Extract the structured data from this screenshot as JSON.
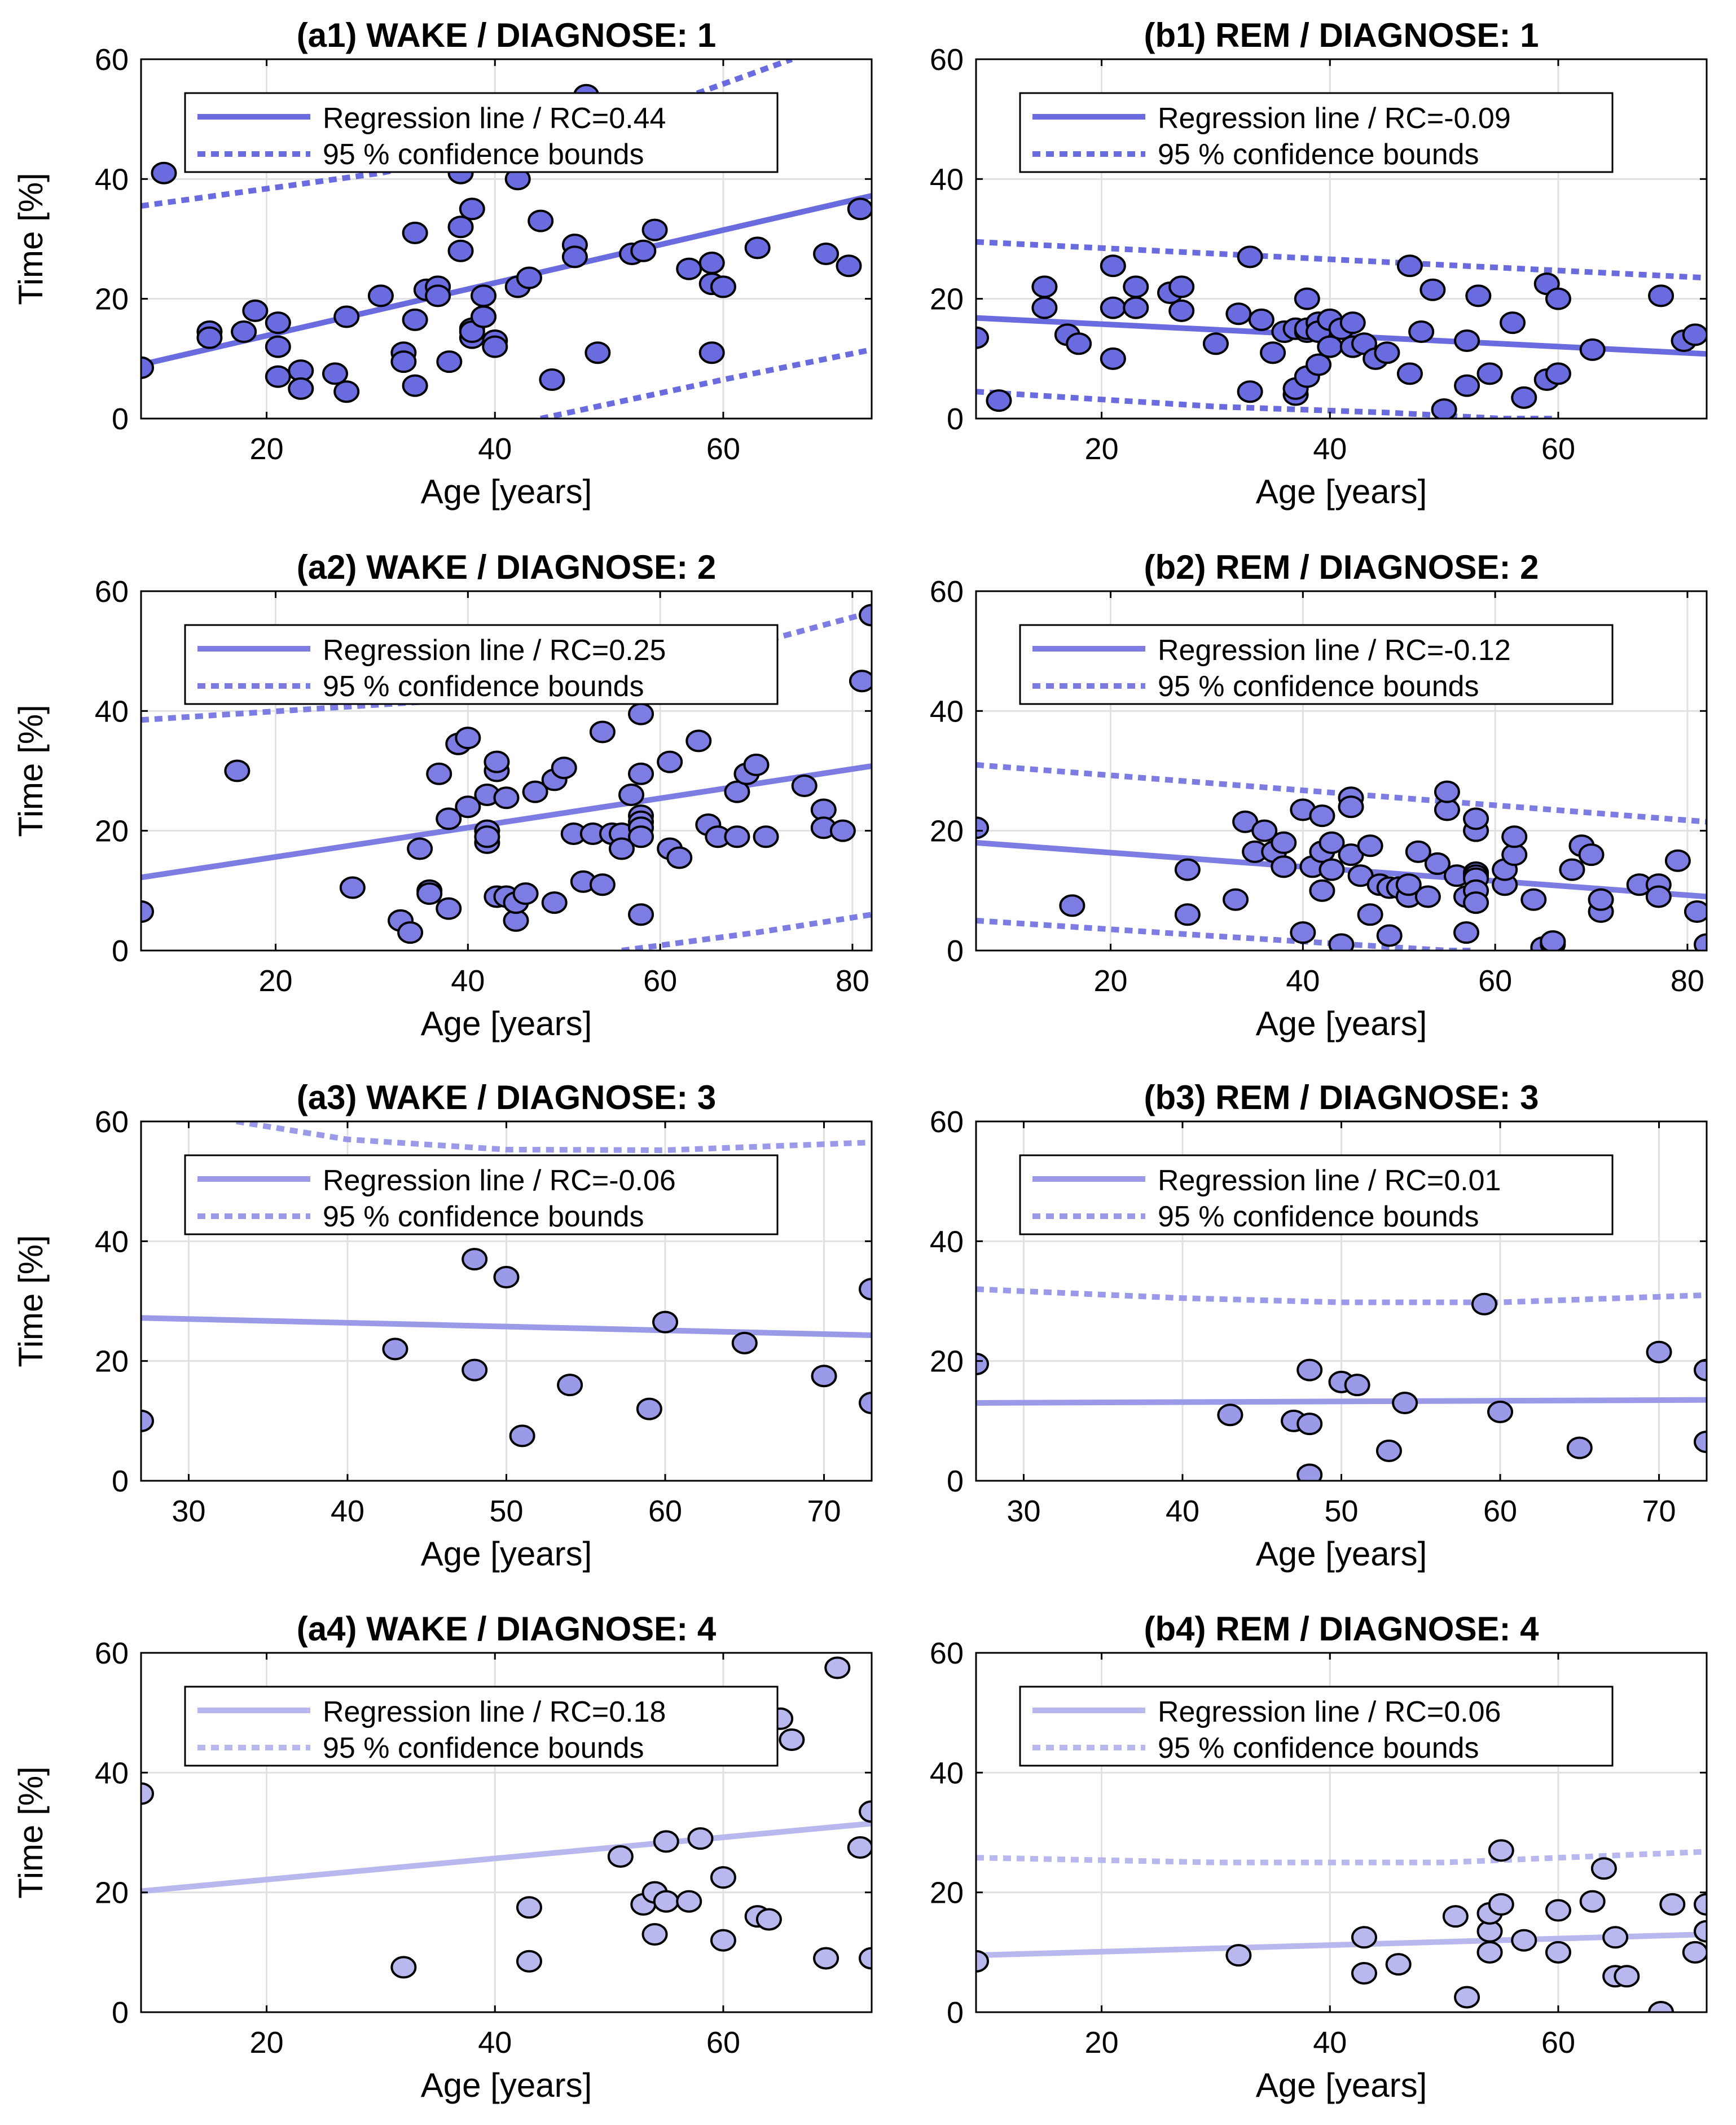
{
  "colors": {
    "diag1": "#6b6be0",
    "diag2": "#7c7ce3",
    "diag3": "#9a9ae8",
    "diag4": "#b8b8ee",
    "marker_edge": "#000000",
    "grid": "#e1e1e1",
    "axis": "#000000"
  },
  "chart_data": [
    {
      "type": "scatter",
      "title": "(a1) WAKE / DIAGNOSE: 1",
      "xlabel": "Age [years]",
      "ylabel": "Time [%]",
      "xlim": [
        9,
        73
      ],
      "ylim": [
        0,
        60
      ],
      "xticks": [
        20,
        40,
        60
      ],
      "yticks": [
        0,
        20,
        40,
        60
      ],
      "grid": true,
      "legend": {
        "placement": "top-center",
        "entries": [
          "Regression line / RC=0.44",
          "95 % confidence bounds"
        ]
      },
      "color_key": "diag1",
      "regression": {
        "x": [
          9,
          73
        ],
        "y": [
          9,
          37.2
        ]
      },
      "conf_upper": {
        "x": [
          9,
          30,
          50,
          66
        ],
        "y": [
          35.5,
          41,
          49,
          60
        ]
      },
      "conf_lower": {
        "x": [
          44,
          60,
          73
        ],
        "y": [
          0,
          6.5,
          11.5
        ]
      },
      "x": [
        9,
        11,
        15,
        15,
        18,
        19,
        21,
        21,
        21,
        23,
        23,
        26,
        27,
        27,
        30,
        32,
        32,
        33,
        33,
        33,
        34,
        35,
        35,
        36,
        37,
        37,
        37,
        38,
        38,
        38,
        38,
        39,
        39,
        39,
        40,
        40,
        42,
        42,
        43,
        44,
        45,
        47,
        47,
        48,
        49,
        52,
        53,
        54,
        57,
        59,
        59,
        59,
        60,
        63,
        69,
        71,
        72
      ],
      "y": [
        8.5,
        41,
        14.5,
        13.5,
        14.5,
        18,
        16,
        12,
        7,
        8,
        5,
        7.5,
        17,
        4.5,
        20.5,
        11,
        9.5,
        31,
        16.5,
        5.5,
        21.5,
        22,
        20.5,
        9.5,
        41,
        28,
        32,
        35,
        15,
        13.5,
        14.5,
        20.5,
        17,
        17,
        13,
        12,
        40,
        22,
        23.5,
        33,
        6.5,
        29,
        27,
        54,
        11,
        27.5,
        28,
        31.5,
        25,
        26,
        22.5,
        11,
        22,
        28.5,
        27.5,
        25.5,
        35
      ]
    },
    {
      "type": "scatter",
      "title": "(b1) REM  / DIAGNOSE: 1",
      "xlabel": "Age [years]",
      "ylabel": "",
      "xlim": [
        9,
        73
      ],
      "ylim": [
        0,
        60
      ],
      "xticks": [
        20,
        40,
        60
      ],
      "yticks": [
        0,
        20,
        40,
        60
      ],
      "grid": true,
      "legend": {
        "placement": "top-center",
        "entries": [
          "Regression line / RC=-0.09",
          "95 % confidence bounds"
        ]
      },
      "color_key": "diag1",
      "regression": {
        "x": [
          9,
          73
        ],
        "y": [
          16.8,
          10.8
        ]
      },
      "conf_upper": {
        "x": [
          9,
          73
        ],
        "y": [
          29.5,
          23.5
        ]
      },
      "conf_lower": {
        "x": [
          9,
          30,
          45,
          55,
          60
        ],
        "y": [
          4.5,
          2,
          1,
          0,
          0
        ]
      },
      "x": [
        9,
        11,
        15,
        15,
        17,
        18,
        21,
        21,
        21,
        23,
        23,
        26,
        27,
        27,
        30,
        32,
        33,
        33,
        34,
        35,
        36,
        37,
        37,
        37,
        38,
        38,
        38,
        38,
        39,
        39,
        39,
        40,
        40,
        41,
        42,
        42,
        43,
        44,
        45,
        47,
        47,
        48,
        49,
        50,
        52,
        52,
        53,
        54,
        56,
        57,
        59,
        59,
        60,
        60,
        63,
        69,
        71,
        72
      ],
      "y": [
        13.5,
        3,
        22,
        18.5,
        14,
        12.5,
        25.5,
        18.5,
        10,
        22,
        18.5,
        21,
        18,
        22,
        12.5,
        17.5,
        27,
        4.5,
        16.5,
        11,
        14.5,
        15,
        4,
        5,
        14.5,
        20,
        7,
        15,
        16,
        9,
        14.5,
        12,
        16.5,
        15,
        12,
        16,
        12.5,
        10,
        11,
        25.5,
        7.5,
        14.5,
        21.5,
        1.5,
        13,
        5.5,
        20.5,
        7.5,
        16,
        3.5,
        22.5,
        6.5,
        7.5,
        20,
        11.5,
        20.5,
        13,
        14
      ]
    },
    {
      "type": "scatter",
      "title": "(a2) WAKE / DIAGNOSE: 2",
      "xlabel": "Age [years]",
      "ylabel": "Time [%]",
      "xlim": [
        6,
        82
      ],
      "ylim": [
        0,
        60
      ],
      "xticks": [
        20,
        40,
        60,
        80
      ],
      "yticks": [
        0,
        20,
        40,
        60
      ],
      "grid": true,
      "legend": {
        "placement": "top-center",
        "entries": [
          "Regression line / RC=0.25",
          "95 % confidence bounds"
        ]
      },
      "color_key": "diag2",
      "regression": {
        "x": [
          6,
          82
        ],
        "y": [
          12.2,
          30.8
        ]
      },
      "conf_upper": {
        "x": [
          6,
          40,
          60,
          82
        ],
        "y": [
          38.5,
          42,
          47,
          56.5
        ]
      },
      "conf_lower": {
        "x": [
          56,
          70,
          82
        ],
        "y": [
          0,
          3,
          6
        ]
      },
      "x": [
        6,
        16,
        28,
        33,
        34,
        35,
        36,
        36,
        37,
        38,
        38,
        39,
        40,
        40,
        42,
        42,
        42,
        42,
        43,
        43,
        43,
        44,
        44,
        45,
        45,
        46,
        47,
        49,
        49,
        50,
        51,
        52,
        53,
        54,
        54,
        55,
        56,
        56,
        57,
        58,
        58,
        58,
        58,
        58,
        58,
        58,
        61,
        61,
        62,
        64,
        65,
        66,
        68,
        68,
        69,
        70,
        71,
        75,
        77,
        77,
        79,
        81,
        82
      ],
      "y": [
        6.5,
        30,
        10.5,
        5,
        3,
        17,
        10,
        9.5,
        29.5,
        22,
        7,
        34.5,
        35.5,
        24,
        26,
        20,
        18,
        19,
        30,
        31.5,
        9,
        25.5,
        9,
        5,
        8,
        9.5,
        26.5,
        28.5,
        8,
        30.5,
        19.5,
        11.5,
        19.5,
        36.5,
        11,
        19.5,
        19.5,
        17,
        26,
        39.5,
        29.5,
        22.5,
        21.5,
        20.5,
        19,
        6,
        31.5,
        17,
        15.5,
        35,
        21,
        19,
        26.5,
        19,
        29.5,
        31,
        19,
        27.5,
        23.5,
        20.5,
        20,
        45,
        56
      ]
    },
    {
      "type": "scatter",
      "title": "(b2) REM  / DIAGNOSE: 2",
      "xlabel": "Age [years]",
      "ylabel": "",
      "xlim": [
        6,
        82
      ],
      "ylim": [
        0,
        60
      ],
      "xticks": [
        20,
        40,
        60,
        80
      ],
      "yticks": [
        0,
        20,
        40,
        60
      ],
      "grid": true,
      "legend": {
        "placement": "top-center",
        "entries": [
          "Regression line / RC=-0.12",
          "95 % confidence bounds"
        ]
      },
      "color_key": "diag2",
      "regression": {
        "x": [
          6,
          82
        ],
        "y": [
          18,
          9
        ]
      },
      "conf_upper": {
        "x": [
          6,
          82
        ],
        "y": [
          31,
          21.5
        ]
      },
      "conf_lower": {
        "x": [
          6,
          30,
          45,
          55,
          58
        ],
        "y": [
          5,
          2.5,
          1,
          0,
          0
        ]
      },
      "x": [
        6,
        16,
        28,
        28,
        33,
        34,
        35,
        36,
        37,
        38,
        38,
        40,
        40,
        41,
        42,
        42,
        42,
        43,
        43,
        44,
        45,
        45,
        45,
        46,
        47,
        47,
        48,
        49,
        49,
        50,
        51,
        51,
        52,
        53,
        54,
        54,
        55,
        55,
        56,
        57,
        57,
        58,
        58,
        58,
        58,
        58,
        58,
        58,
        61,
        61,
        62,
        62,
        64,
        65,
        66,
        66,
        68,
        69,
        70,
        71,
        71,
        75,
        77,
        77,
        79,
        81,
        82
      ],
      "y": [
        20.5,
        7.5,
        13.5,
        6,
        8.5,
        21.5,
        16.5,
        20,
        16.5,
        18,
        14,
        23.5,
        3,
        14,
        16.5,
        10,
        22.5,
        18,
        13.5,
        1,
        25.5,
        16,
        24,
        12.5,
        6,
        17.5,
        11,
        2.5,
        10.5,
        10.5,
        9,
        11,
        16.5,
        9,
        14.5,
        14.5,
        23.5,
        26.5,
        12.5,
        9,
        3,
        20,
        22,
        13,
        12.5,
        12,
        10,
        8,
        11,
        13.5,
        16,
        19,
        8.5,
        0.5,
        1,
        1.5,
        13.5,
        17.5,
        16,
        6.5,
        8.5,
        11,
        11,
        9,
        15,
        6.5,
        1
      ]
    },
    {
      "type": "scatter",
      "title": "(a3) WAKE / DIAGNOSE: 3",
      "xlabel": "Age [years]",
      "ylabel": "Time [%]",
      "xlim": [
        27,
        73
      ],
      "ylim": [
        0,
        60
      ],
      "xticks": [
        30,
        40,
        50,
        60,
        70
      ],
      "yticks": [
        0,
        20,
        40,
        60
      ],
      "grid": true,
      "legend": {
        "placement": "top-center",
        "entries": [
          "Regression line / RC=-0.06",
          "95 % confidence bounds"
        ]
      },
      "color_key": "diag3",
      "regression": {
        "x": [
          27,
          73
        ],
        "y": [
          27.2,
          24.3
        ]
      },
      "conf_upper": {
        "x": [
          33,
          40,
          50,
          60,
          73
        ],
        "y": [
          60,
          57,
          55.3,
          55.2,
          56.5
        ]
      },
      "conf_lower": null,
      "x": [
        27,
        43,
        48,
        48,
        50,
        51,
        54,
        59,
        60,
        65,
        70,
        73,
        73
      ],
      "y": [
        10,
        22,
        18.5,
        37,
        34,
        7.5,
        16,
        12,
        26.5,
        23,
        17.5,
        13,
        32
      ]
    },
    {
      "type": "scatter",
      "title": "(b3) REM  / DIAGNOSE: 3",
      "xlabel": "Age [years]",
      "ylabel": "",
      "xlim": [
        27,
        73
      ],
      "ylim": [
        0,
        60
      ],
      "xticks": [
        30,
        40,
        50,
        60,
        70
      ],
      "yticks": [
        0,
        20,
        40,
        60
      ],
      "grid": true,
      "legend": {
        "placement": "top-center",
        "entries": [
          "Regression line / RC=0.01",
          "95 % confidence bounds"
        ]
      },
      "color_key": "diag3",
      "regression": {
        "x": [
          27,
          73
        ],
        "y": [
          13,
          13.5
        ]
      },
      "conf_upper": {
        "x": [
          27,
          40,
          50,
          60,
          73
        ],
        "y": [
          32,
          30.5,
          29.8,
          29.8,
          31
        ]
      },
      "conf_lower": null,
      "x": [
        27,
        43,
        47,
        48,
        48,
        48,
        50,
        51,
        53,
        54,
        59,
        60,
        65,
        70,
        73,
        73
      ],
      "y": [
        19.5,
        11,
        10,
        9.5,
        18.5,
        1,
        16.5,
        16,
        5,
        13,
        29.5,
        11.5,
        5.5,
        21.5,
        6.5,
        18.5
      ]
    },
    {
      "type": "scatter",
      "title": "(a4) WAKE / DIAGNOSE: 4",
      "xlabel": "Age [years]",
      "ylabel": "Time [%]",
      "xlim": [
        9,
        73
      ],
      "ylim": [
        0,
        60
      ],
      "xticks": [
        20,
        40,
        60
      ],
      "yticks": [
        0,
        20,
        40,
        60
      ],
      "grid": true,
      "legend": {
        "placement": "top-center",
        "entries": [
          "Regression line / RC=0.18",
          "95 % confidence bounds"
        ]
      },
      "color_key": "diag4",
      "regression": {
        "x": [
          9,
          73
        ],
        "y": [
          20.2,
          31.5
        ]
      },
      "conf_upper": null,
      "conf_lower": null,
      "x": [
        9,
        32,
        43,
        43,
        51,
        53,
        54,
        54,
        55,
        55,
        57,
        58,
        60,
        60,
        63,
        64,
        65,
        66,
        69,
        70,
        72,
        73,
        73
      ],
      "y": [
        36.5,
        7.5,
        8.5,
        17.5,
        26,
        18,
        20,
        13,
        18.5,
        28.5,
        18.5,
        29,
        12,
        22.5,
        16,
        15.5,
        49,
        45.5,
        9,
        57.5,
        27.5,
        33.5,
        9
      ]
    },
    {
      "type": "scatter",
      "title": "(b4) REM  / DIAGNOSE: 4",
      "xlabel": "Age [years]",
      "ylabel": "",
      "xlim": [
        9,
        73
      ],
      "ylim": [
        0,
        60
      ],
      "xticks": [
        20,
        40,
        60
      ],
      "yticks": [
        0,
        20,
        40,
        60
      ],
      "grid": true,
      "legend": {
        "placement": "top-center",
        "entries": [
          "Regression line / RC=0.06",
          "95 % confidence bounds"
        ]
      },
      "color_key": "diag4",
      "regression": {
        "x": [
          9,
          73
        ],
        "y": [
          9.5,
          13
        ]
      },
      "conf_upper": {
        "x": [
          9,
          30,
          50,
          73
        ],
        "y": [
          25.8,
          25,
          25,
          26.8
        ]
      },
      "conf_lower": null,
      "x": [
        9,
        32,
        43,
        43,
        46,
        51,
        52,
        54,
        54,
        54,
        55,
        55,
        57,
        60,
        60,
        63,
        64,
        65,
        65,
        66,
        69,
        70,
        72,
        73,
        73
      ],
      "y": [
        8.5,
        9.5,
        6.5,
        12.5,
        8,
        16,
        2.5,
        13.5,
        10,
        16.5,
        27,
        18,
        12,
        10,
        17,
        18.5,
        24,
        12.5,
        6,
        6,
        0,
        18,
        10,
        13.5,
        18
      ]
    }
  ]
}
